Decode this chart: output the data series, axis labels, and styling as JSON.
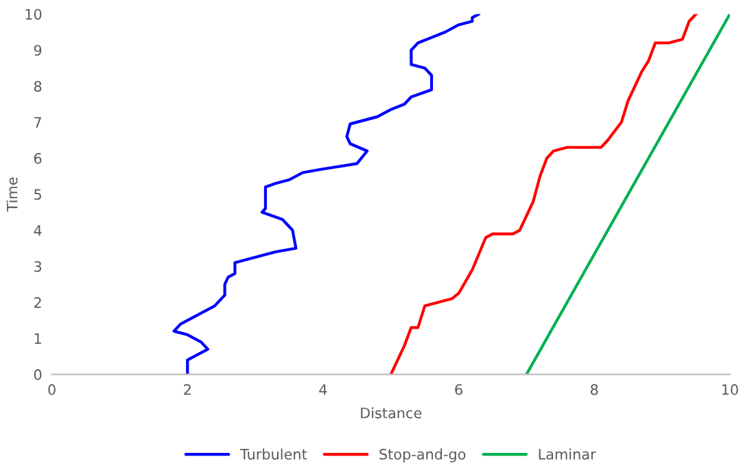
{
  "chart_data": {
    "type": "line",
    "xlabel": "Distance",
    "ylabel": "Time",
    "xlim": [
      0,
      10
    ],
    "ylim": [
      0,
      10
    ],
    "xticks": [
      0,
      2,
      4,
      6,
      8,
      10
    ],
    "yticks": [
      0,
      1,
      2,
      3,
      4,
      5,
      6,
      7,
      8,
      9,
      10
    ],
    "grid": false,
    "legend": "bottom",
    "marker": "none",
    "line_style": "solid",
    "series": [
      {
        "name": "Turbulent",
        "color": "#0000ff",
        "x": [
          2.0,
          2.0,
          2.3,
          2.2,
          2.0,
          1.8,
          1.9,
          2.2,
          2.4,
          2.5,
          2.55,
          2.55,
          2.6,
          2.7,
          2.7,
          3.3,
          3.6,
          3.55,
          3.4,
          3.25,
          3.1,
          3.15,
          3.15,
          3.15,
          3.3,
          3.5,
          3.7,
          4.0,
          4.5,
          4.65,
          4.4,
          4.35,
          4.4,
          4.6,
          4.8,
          5.0,
          5.2,
          5.3,
          5.6,
          5.6,
          5.5,
          5.3,
          5.3,
          5.4,
          5.6,
          5.8,
          6.0,
          6.2,
          6.2,
          6.3
        ],
        "values": [
          0,
          0.4,
          0.7,
          0.9,
          1.1,
          1.2,
          1.4,
          1.7,
          1.9,
          2.1,
          2.2,
          2.5,
          2.7,
          2.8,
          3.1,
          3.4,
          3.5,
          4.0,
          4.3,
          4.4,
          4.5,
          4.6,
          4.9,
          5.2,
          5.3,
          5.4,
          5.6,
          5.7,
          5.85,
          6.2,
          6.4,
          6.6,
          6.95,
          7.05,
          7.15,
          7.35,
          7.5,
          7.7,
          7.9,
          8.3,
          8.5,
          8.6,
          9.0,
          9.2,
          9.35,
          9.5,
          9.7,
          9.8,
          9.9,
          10
        ]
      },
      {
        "name": "Stop-and-go",
        "color": "#ff0000",
        "x": [
          5.0,
          5.1,
          5.2,
          5.3,
          5.4,
          5.5,
          5.7,
          5.9,
          6.0,
          6.2,
          6.4,
          6.5,
          6.8,
          6.9,
          7.1,
          7.2,
          7.3,
          7.4,
          7.6,
          8.1,
          8.2,
          8.4,
          8.5,
          8.7,
          8.8,
          8.9,
          9.0,
          9.1,
          9.3,
          9.4,
          9.5
        ],
        "values": [
          0,
          0.4,
          0.8,
          1.3,
          1.3,
          1.9,
          2.0,
          2.1,
          2.25,
          2.9,
          3.8,
          3.9,
          3.9,
          4.0,
          4.8,
          5.5,
          6.0,
          6.2,
          6.3,
          6.3,
          6.5,
          7.0,
          7.6,
          8.4,
          8.7,
          9.2,
          9.2,
          9.2,
          9.3,
          9.8,
          10
        ]
      },
      {
        "name": "Laminar",
        "color": "#00b050",
        "x": [
          7.0,
          7.3,
          7.6,
          7.9,
          8.2,
          8.5,
          8.8,
          9.1,
          9.4,
          9.7,
          10.0
        ],
        "values": [
          0,
          1,
          2,
          3,
          4,
          5,
          6,
          7,
          8,
          9,
          10
        ]
      }
    ]
  }
}
